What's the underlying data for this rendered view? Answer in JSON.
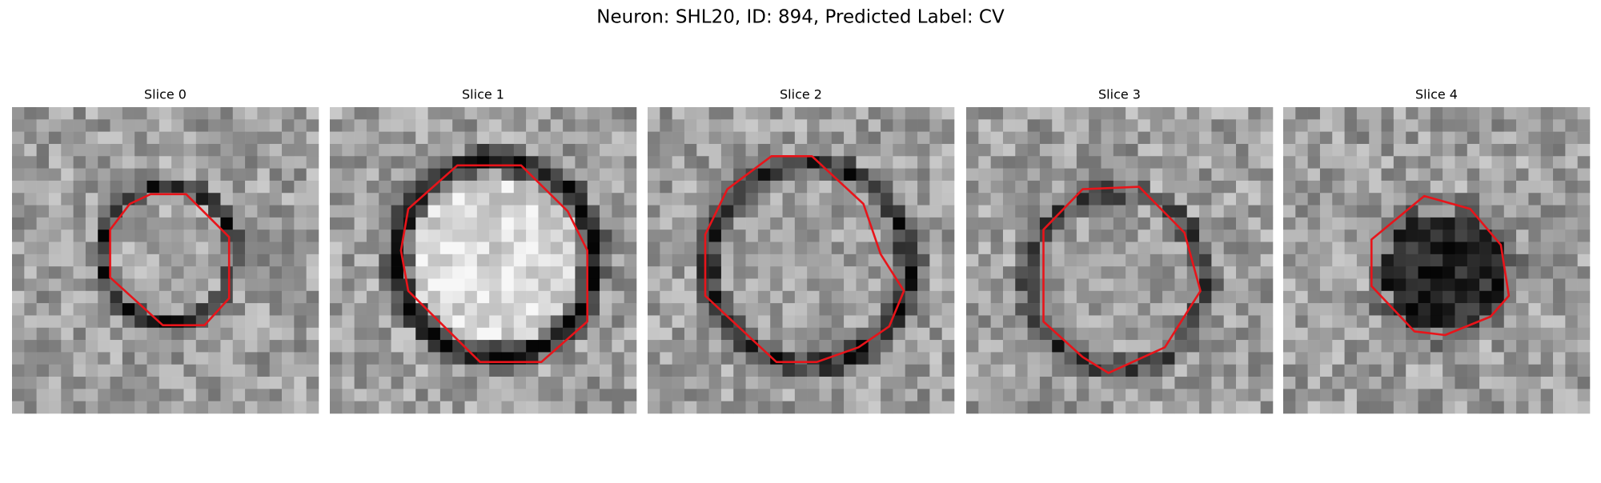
{
  "title": "Neuron: SHL20, ID: 894, Predicted Label: CV",
  "panels": [
    {
      "title": "Slice 0"
    },
    {
      "title": "Slice 1"
    },
    {
      "title": "Slice 2"
    },
    {
      "title": "Slice 3"
    },
    {
      "title": "Slice 4"
    }
  ]
}
